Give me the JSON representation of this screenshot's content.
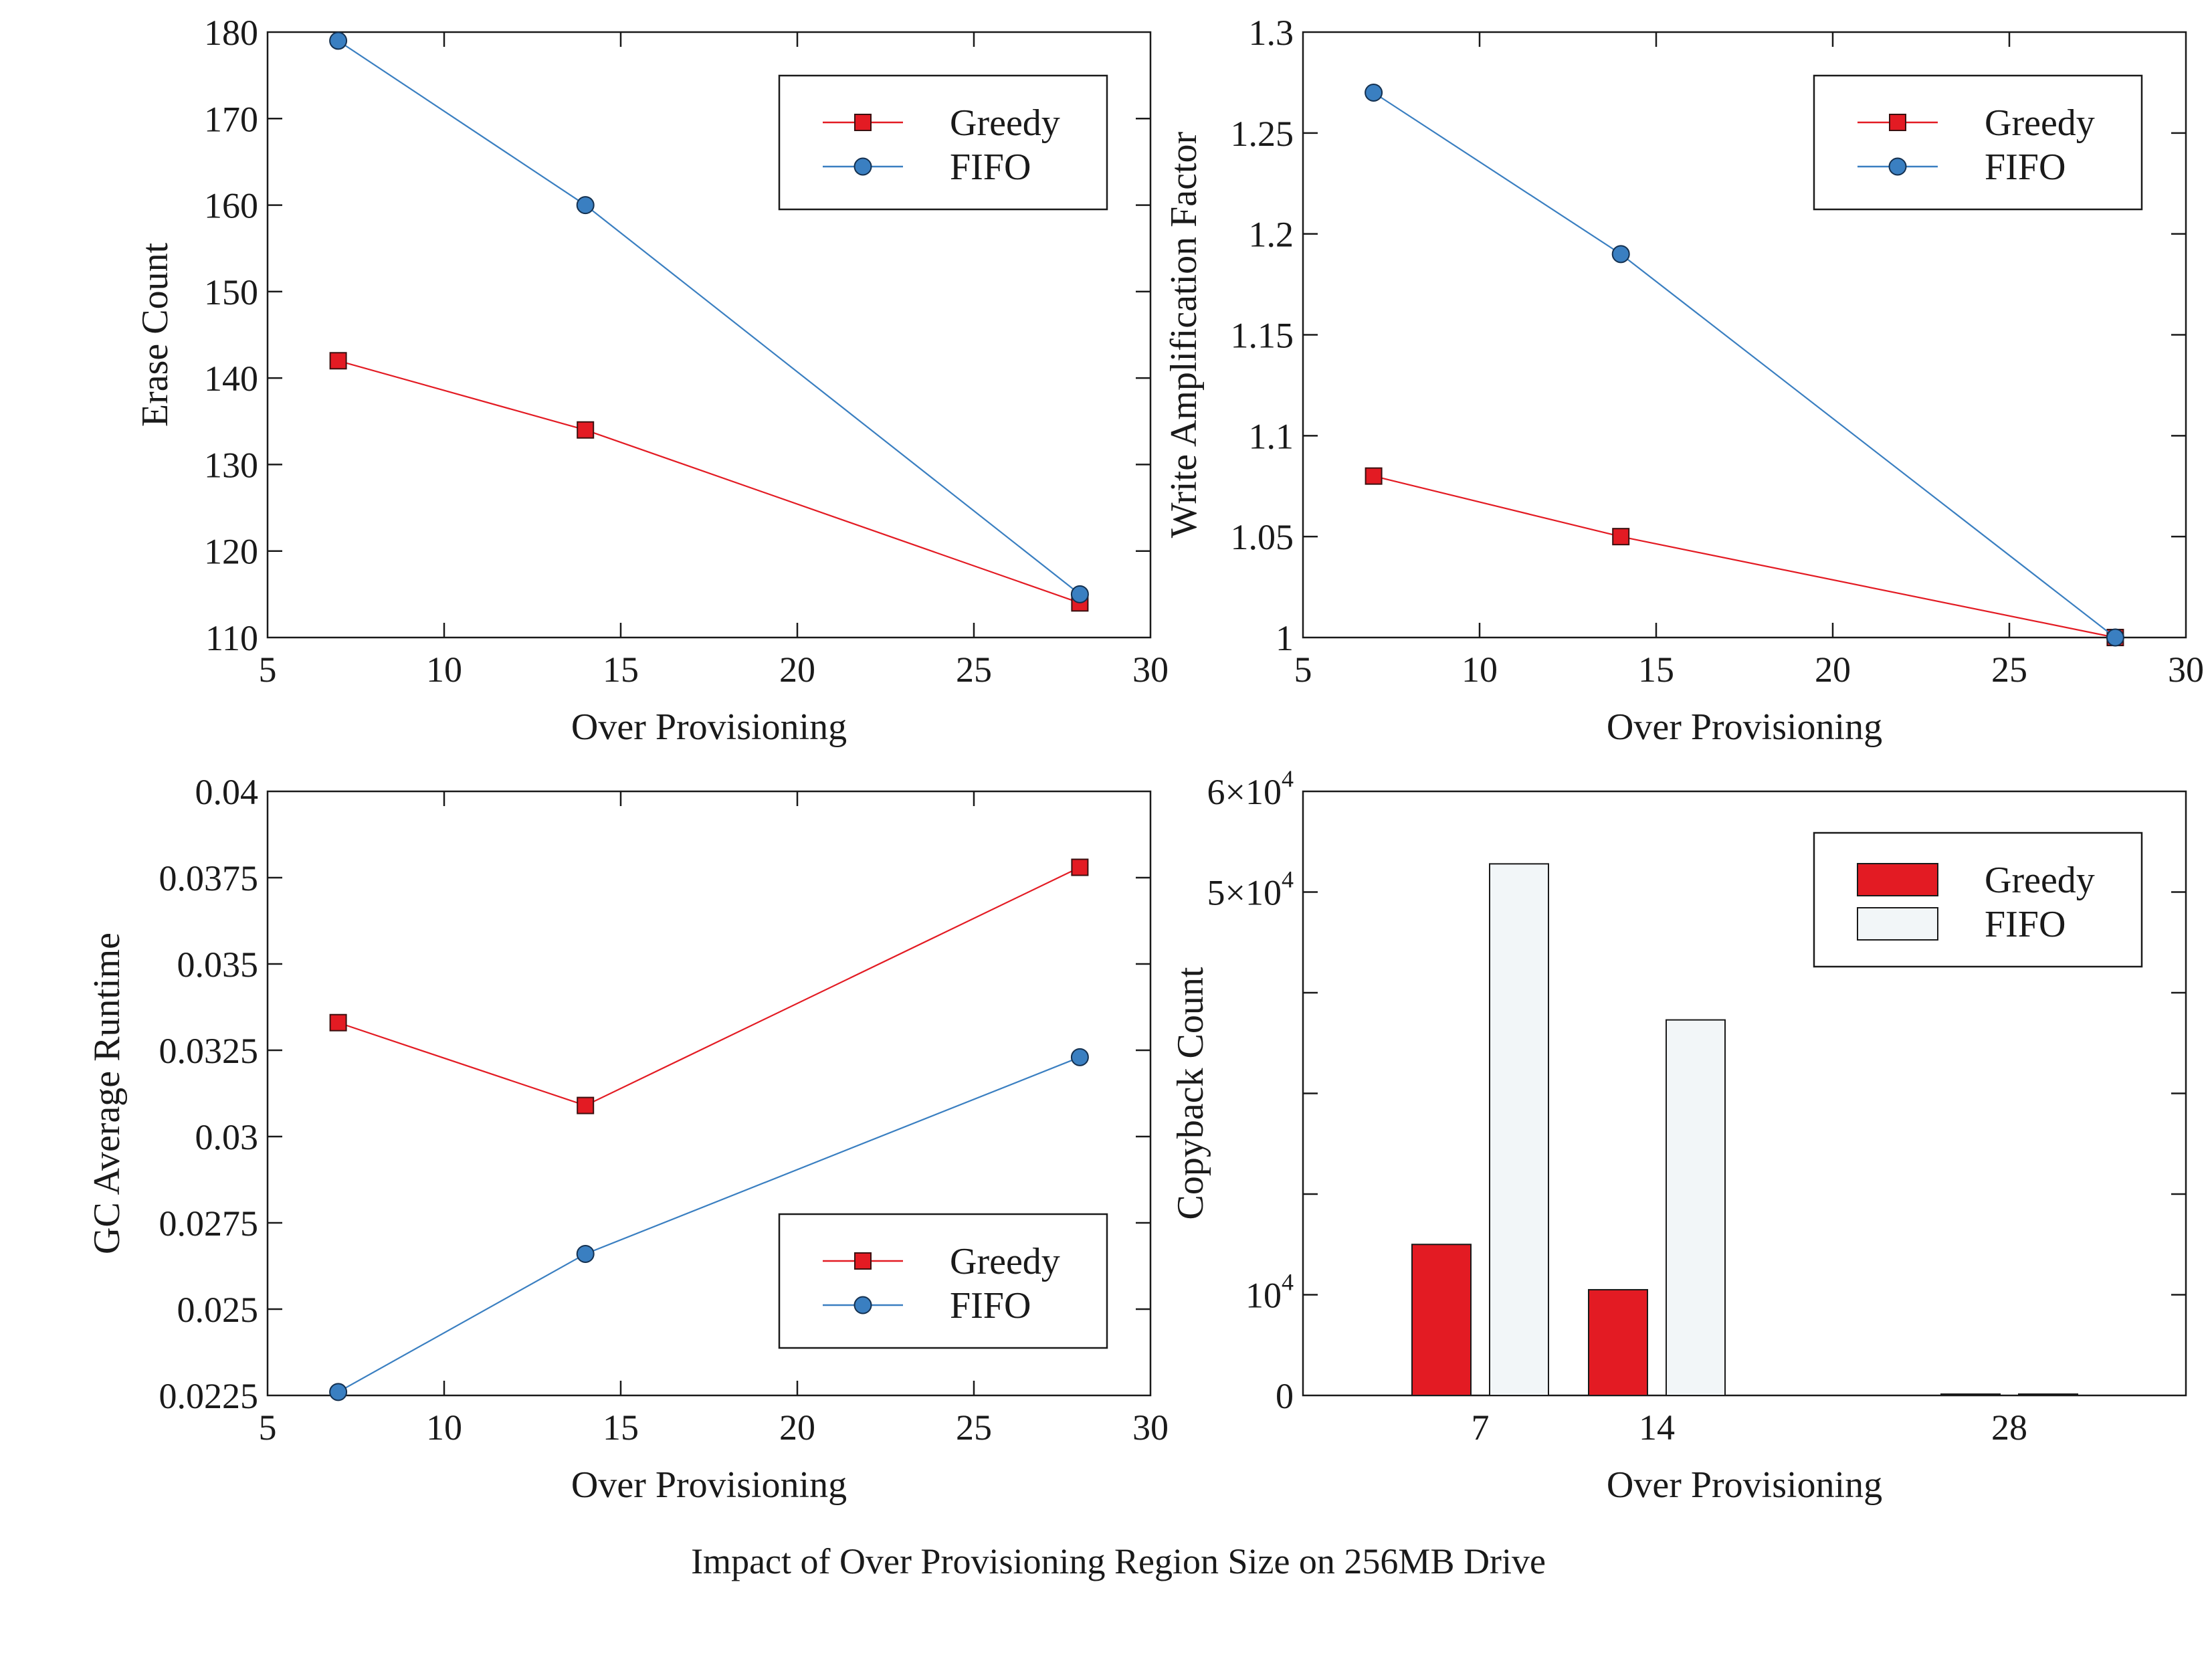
{
  "caption": "Impact of Over Provisioning Region Size on 256MB Drive",
  "colors": {
    "greedy": "#e31b23",
    "fifo": "#3a7fc1",
    "fifo_bar": "#f2f6f8",
    "axis": "#1a1a1a"
  },
  "chart_data": [
    {
      "type": "line",
      "xlabel": "Over Provisioning",
      "ylabel": "Erase Count",
      "xlim": [
        5,
        30
      ],
      "ylim": [
        110,
        180
      ],
      "xticks": [
        "5",
        "10",
        "15",
        "20",
        "25",
        "30"
      ],
      "yticks": [
        "110",
        "120",
        "130",
        "140",
        "150",
        "160",
        "170",
        "180"
      ],
      "legend_position": "top-right",
      "series": [
        {
          "name": "Greedy",
          "marker": "square",
          "x": [
            7,
            14,
            28
          ],
          "values": [
            142,
            134,
            114
          ]
        },
        {
          "name": "FIFO",
          "marker": "circle",
          "x": [
            7,
            14,
            28
          ],
          "values": [
            179,
            160,
            115
          ]
        }
      ]
    },
    {
      "type": "line",
      "xlabel": "Over Provisioning",
      "ylabel": "Write Amplification Factor",
      "xlim": [
        5,
        30
      ],
      "ylim": [
        1,
        1.3
      ],
      "xticks": [
        "5",
        "10",
        "15",
        "20",
        "25",
        "30"
      ],
      "yticks": [
        "1",
        "1.05",
        "1.1",
        "1.15",
        "1.2",
        "1.25",
        "1.3"
      ],
      "legend_position": "top-right",
      "series": [
        {
          "name": "Greedy",
          "marker": "square",
          "x": [
            7,
            14,
            28
          ],
          "values": [
            1.08,
            1.05,
            1.0
          ]
        },
        {
          "name": "FIFO",
          "marker": "circle",
          "x": [
            7,
            14,
            28
          ],
          "values": [
            1.27,
            1.19,
            1.0
          ]
        }
      ]
    },
    {
      "type": "line",
      "xlabel": "Over Provisioning",
      "ylabel": "GC Average Runtime",
      "xlim": [
        5,
        30
      ],
      "ylim": [
        0.0225,
        0.04
      ],
      "xticks": [
        "5",
        "10",
        "15",
        "20",
        "25",
        "30"
      ],
      "yticks": [
        "0.0225",
        "0.025",
        "0.0275",
        "0.03",
        "0.0325",
        "0.035",
        "0.0375",
        "0.04"
      ],
      "legend_position": "bottom-right",
      "series": [
        {
          "name": "Greedy",
          "marker": "square",
          "x": [
            7,
            14,
            28
          ],
          "values": [
            0.0333,
            0.0309,
            0.0378
          ]
        },
        {
          "name": "FIFO",
          "marker": "circle",
          "x": [
            7,
            14,
            28
          ],
          "values": [
            0.0226,
            0.0266,
            0.0323
          ]
        }
      ]
    },
    {
      "type": "bar",
      "xlabel": "Over Provisioning",
      "ylabel": "Copyback Count",
      "categories": [
        "7",
        "14",
        "28"
      ],
      "ylim": [
        0,
        60000
      ],
      "yticks": [
        {
          "value": 0,
          "base": "0",
          "exp": ""
        },
        {
          "value": 10000,
          "base": "10",
          "exp": "4"
        },
        {
          "value": 50000,
          "base": "5×10",
          "exp": "4"
        },
        {
          "value": 60000,
          "base": "6×10",
          "exp": "4"
        }
      ],
      "legend_position": "top-right",
      "series": [
        {
          "name": "Greedy",
          "values": [
            15000,
            10500,
            0
          ]
        },
        {
          "name": "FIFO",
          "values": [
            52800,
            37300,
            0
          ]
        }
      ]
    }
  ]
}
